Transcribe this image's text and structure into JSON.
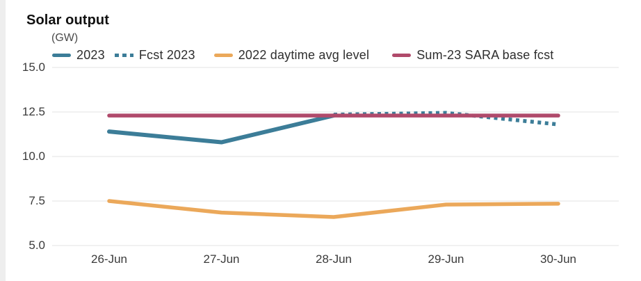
{
  "chart_data": {
    "type": "line",
    "title": "Solar output",
    "ylabel": "(GW)",
    "xlabel": "",
    "categories": [
      "26-Jun",
      "27-Jun",
      "28-Jun",
      "29-Jun",
      "30-Jun"
    ],
    "yticks": [
      15.0,
      12.5,
      10.0,
      7.5,
      5.0
    ],
    "ytick_labels": [
      "15.0",
      "12.5",
      "10.0",
      "7.5",
      "5.0"
    ],
    "ylim": [
      5.0,
      15.0
    ],
    "grid": "horizontal-only",
    "gridline_color": "#e3e3e3",
    "legend_position": "top",
    "series": [
      {
        "name": "2023",
        "color": "#3C7D98",
        "style": "solid",
        "values": [
          11.4,
          10.8,
          12.3,
          null,
          null
        ]
      },
      {
        "name": "Fcst 2023",
        "color": "#3C7D98",
        "style": "dotted",
        "values": [
          null,
          null,
          12.35,
          12.45,
          11.8
        ]
      },
      {
        "name": "2022 daytime avg level",
        "color": "#EBA85A",
        "style": "solid",
        "values": [
          7.5,
          6.85,
          6.6,
          7.3,
          7.35
        ]
      },
      {
        "name": "Sum-23 SARA base fcst",
        "color": "#B04A6B",
        "style": "solid",
        "values": [
          12.3,
          12.3,
          12.3,
          12.3,
          12.3
        ]
      }
    ]
  }
}
